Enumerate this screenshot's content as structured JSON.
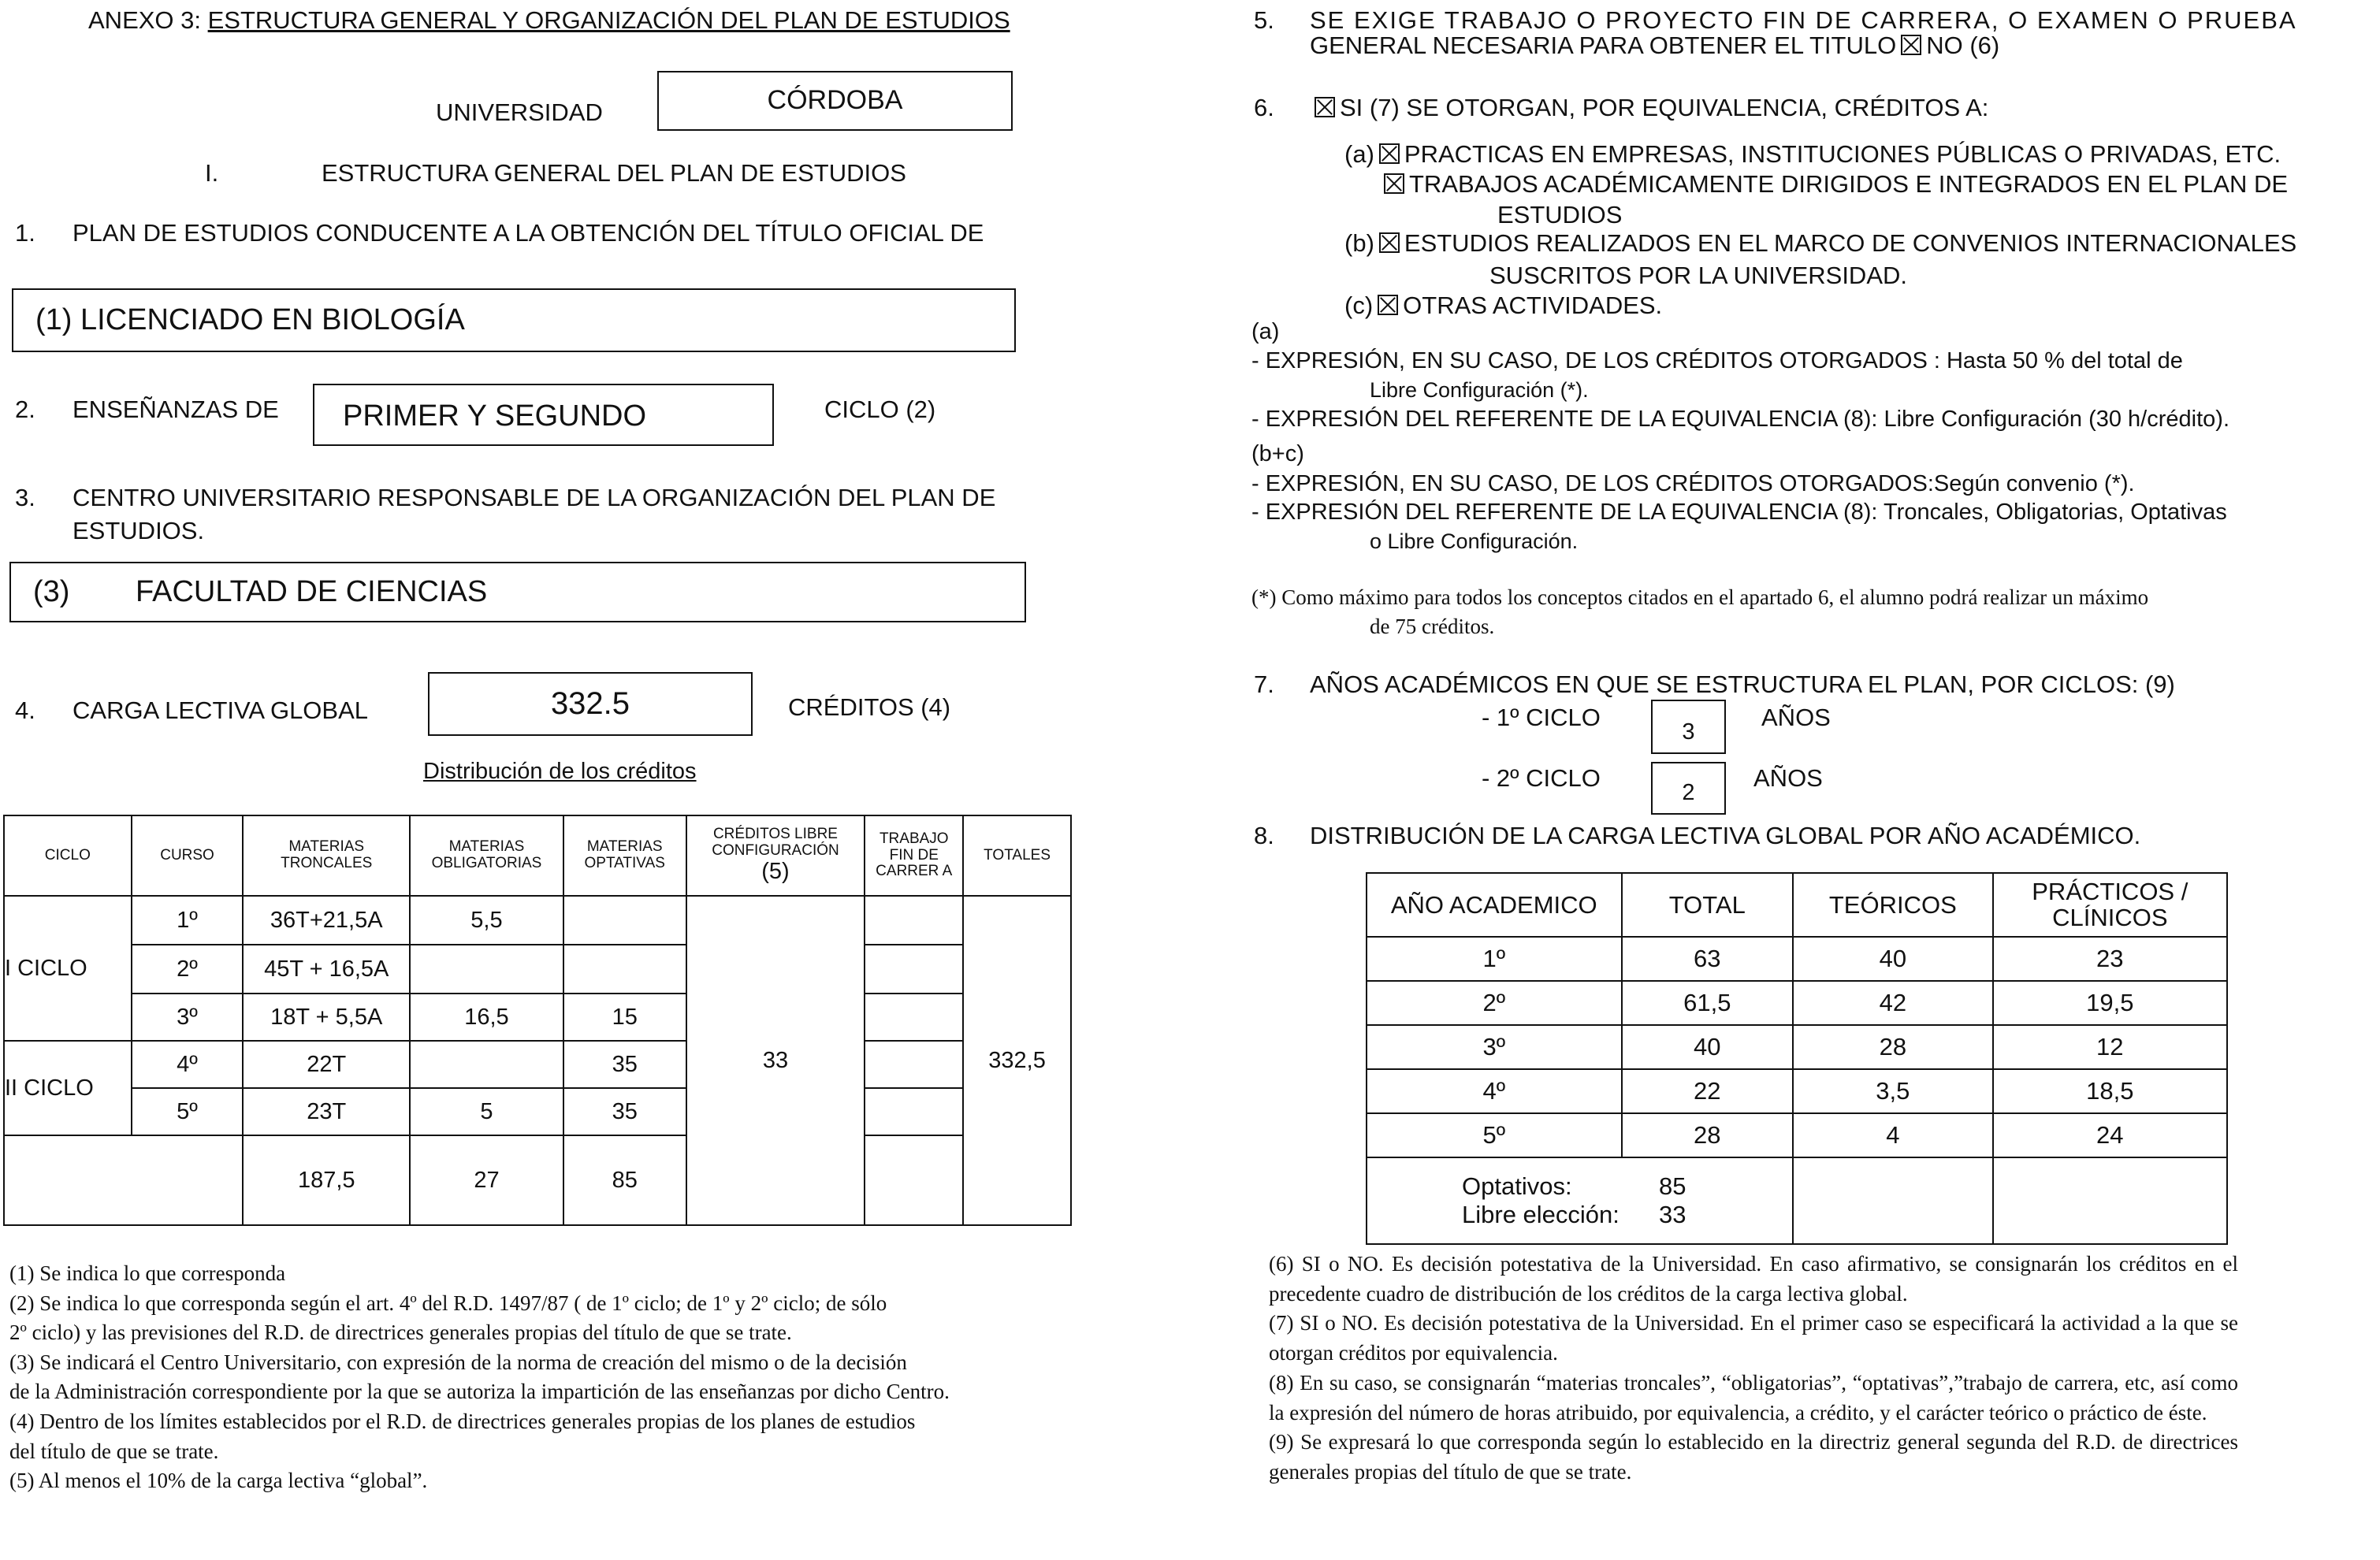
{
  "left": {
    "title_prefix": "ANEXO 3: ",
    "title": "ESTRUCTURA GENERAL Y ORGANIZACIÓN DEL PLAN DE ESTUDIOS",
    "universidad_label": "UNIVERSIDAD",
    "universidad": "CÓRDOBA",
    "section_num": "I.",
    "section_title": "ESTRUCTURA GENERAL DEL PLAN DE ESTUDIOS",
    "q1_num": "1.",
    "q1": "PLAN DE ESTUDIOS CONDUCENTE A LA  OBTENCIÓN DEL TÍTULO OFICIAL DE",
    "titulo": "(1) LICENCIADO EN BIOLOGÍA",
    "q2_num": "2.",
    "q2": "ENSEÑANZAS DE",
    "ensenanzas": "PRIMER Y SEGUNDO",
    "q2_suffix": "CICLO (2)",
    "q3_num": "3.",
    "q3_line1": "CENTRO UNIVERSITARIO RESPONSABLE DE LA ORGANIZACIÓN DEL PLAN DE",
    "q3_line2": "ESTUDIOS.",
    "centro_num": "(3)",
    "centro": "FACULTAD DE CIENCIAS",
    "q4_num": "4.",
    "q4": "CARGA LECTIVA GLOBAL",
    "carga": "332.5",
    "q4_suffix": "CRÉDITOS (4)",
    "dist_title": "Distribución de los créditos",
    "table": {
      "headers": [
        "CICLO",
        "CURSO",
        "MATERIAS TRONCALES",
        "MATERIAS OBLIGATORIAS",
        "MATERIAS OPTATIVAS",
        "CRÉDITOS LIBRE CONFIGURACIÓN",
        "TRABAJO FIN DE CARRER A",
        "TOTALES"
      ],
      "header_note": "(5)",
      "ciclo1": "I CICLO",
      "ciclo2": "II CICLO",
      "rows": [
        {
          "curso": "1º",
          "troncales": "36T+21,5A",
          "obligatorias": "5,5",
          "optativas": ""
        },
        {
          "curso": "2º",
          "troncales": "45T + 16,5A",
          "obligatorias": "",
          "optativas": ""
        },
        {
          "curso": "3º",
          "troncales": "18T + 5,5A",
          "obligatorias": "16,5",
          "optativas": "15"
        },
        {
          "curso": "4º",
          "troncales": "22T",
          "obligatorias": "",
          "optativas": "35"
        },
        {
          "curso": "5º",
          "troncales": "23T",
          "obligatorias": "5",
          "optativas": "35"
        }
      ],
      "libre": "33",
      "total": "332,5",
      "sum": {
        "troncales": "187,5",
        "obligatorias": "27",
        "optativas": "85"
      }
    },
    "footnotes": [
      "(1)    Se indica lo que corresponda",
      "(2)    Se indica lo que corresponda según el art. 4º del R.D. 1497/87 ( de 1º ciclo; de 1º y 2º ciclo; de sólo",
      " 2º ciclo) y las previsiones del R.D. de directrices generales propias del título de que se trate.",
      "(3)    Se indicará el Centro Universitario, con expresión de la norma de creación del mismo o de la decisión",
      "de la Administración correspondiente por la que se autoriza la impartición de las enseñanzas por dicho Centro.",
      "(4)    Dentro de los límites establecidos por el R.D. de directrices generales propias de los planes de estudios",
      "del título de que se trate.",
      "(5)    Al menos el 10% de la carga lectiva “global”."
    ]
  },
  "right": {
    "q5_num": "5.",
    "q5_line1": "SE EXIGE TRABAJO O PROYECTO FIN DE CARRERA, O EXAMEN O PRUEBA",
    "q5_line2": "GENERAL NECESARIA PARA OBTENER EL TITULO",
    "q5_answer": "NO  (6)",
    "q6_num": "6.",
    "q6": "SI  (7)  SE OTORGAN, POR EQUIVALENCIA, CRÉDITOS A:",
    "q6_items": [
      {
        "prefix": "(a)",
        "text": "PRACTICAS EN EMPRESAS, INSTITUCIONES PÚBLICAS O PRIVADAS, ETC."
      },
      {
        "prefix": "",
        "text": "TRABAJOS ACADÉMICAMENTE DIRIGIDOS E INTEGRADOS EN EL PLAN DE",
        "cont": "ESTUDIOS"
      },
      {
        "prefix": "(b)",
        "text": "ESTUDIOS REALIZADOS EN EL MARCO DE CONVENIOS INTERNACIONALES",
        "cont": "SUSCRITOS POR LA UNIVERSIDAD."
      },
      {
        "prefix": "(c)",
        "text": "OTRAS ACTIVIDADES."
      }
    ],
    "a_label": "(a)",
    "a_line1": "- EXPRESIÓN, EN SU CASO, DE LOS CRÉDITOS OTORGADOS : Hasta 50 % del total de",
    "a_line1b": "Libre Configuración (*).",
    "a_line2": "- EXPRESIÓN DEL REFERENTE DE LA EQUIVALENCIA (8): Libre Configuración (30 h/crédito).",
    "bc_label": "(b+c)",
    "bc_line1": "- EXPRESIÓN, EN SU CASO, DE LOS CRÉDITOS OTORGADOS:Según convenio (*).",
    "bc_line2": "- EXPRESIÓN DEL REFERENTE DE LA EQUIVALENCIA (8): Troncales, Obligatorias, Optativas",
    "bc_line2b": "o Libre Configuración.",
    "note_line1": "(*) Como máximo para todos los conceptos citados en el apartado 6, el alumno podrá realizar un máximo",
    "note_line2": "de 75 créditos.",
    "q7_num": "7.",
    "q7": "AÑOS ACADÉMICOS EN QUE SE ESTRUCTURA EL PLAN, POR CICLOS: (9)",
    "ciclo1_label": "-   1º CICLO",
    "ciclo1_years": "3",
    "ciclo2_label": "-   2º CICLO",
    "ciclo2_years": "2",
    "years_label": "AÑOS",
    "q8_num": "8.",
    "q8": "DISTRIBUCIÓN DE LA CARGA LECTIVA GLOBAL POR AÑO ACADÉMICO.",
    "table": {
      "headers": [
        "AÑO ACADEMICO",
        "TOTAL",
        "TEÓRICOS",
        "PRÁCTICOS / CLÍNICOS"
      ],
      "rows": [
        [
          "1º",
          "63",
          "40",
          "23"
        ],
        [
          "2º",
          "61,5",
          "42",
          "19,5"
        ],
        [
          "3º",
          "40",
          "28",
          "12"
        ],
        [
          "4º",
          "22",
          "3,5",
          "18,5"
        ],
        [
          "5º",
          "28",
          "4",
          "24"
        ]
      ],
      "optativos_label": "Optativos:",
      "optativos": "85",
      "libre_label": "Libre elección:",
      "libre": "33"
    },
    "footnotes": [
      "(6) SI o NO. Es decisión potestativa de la Universidad. En caso afirmativo, se consignarán los créditos en el precedente cuadro de distribución de los créditos de la carga lectiva global.",
      "(7) SI o NO. Es decisión potestativa de la Universidad. En el primer caso se especificará la actividad a la que se otorgan créditos por equivalencia.",
      "(8) En su caso, se consignarán “materias troncales”, “obligatorias”, “optativas”,”trabajo de carrera, etc, así como la expresión del número de horas atribuido, por equivalencia, a crédito, y el carácter teórico o práctico de éste.",
      "(9) Se expresará lo que corresponda según lo establecido en la directriz general segunda del R.D. de directrices generales propias del título de que se trate."
    ]
  }
}
